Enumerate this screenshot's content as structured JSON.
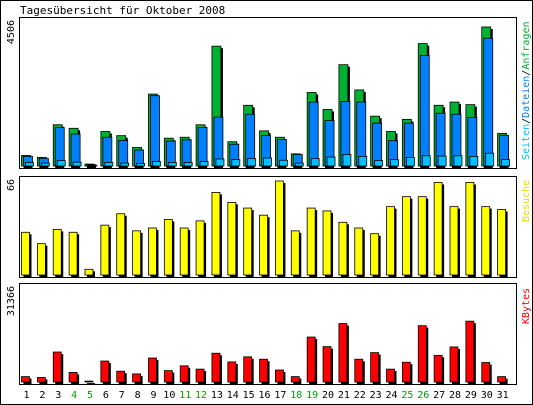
{
  "colors": {
    "background": "#ffffff",
    "frame": "#000000",
    "hits": "#00b030",
    "files": "#0080ff",
    "pages": "#00c0ff",
    "visits": "#ffff00",
    "kbytes": "#ff0000",
    "weekend_label": "#00a000"
  },
  "chart_data": {
    "type": "bar",
    "title": "Tagesübersicht für Oktober 2008",
    "categories": [
      "1",
      "2",
      "3",
      "4",
      "5",
      "6",
      "7",
      "8",
      "9",
      "10",
      "11",
      "12",
      "13",
      "14",
      "15",
      "16",
      "17",
      "18",
      "19",
      "20",
      "21",
      "22",
      "23",
      "24",
      "25",
      "26",
      "27",
      "28",
      "29",
      "30",
      "31"
    ],
    "weekend_days": [
      "4",
      "5",
      "11",
      "12",
      "18",
      "19",
      "25",
      "26"
    ],
    "panels": [
      {
        "id": "requests",
        "axis_max_label": "4506",
        "ylim": [
          0,
          4506
        ],
        "legend_parts": [
          {
            "text": "Seiten",
            "color": "#00c0ff"
          },
          {
            "text": "/",
            "color": "#000000"
          },
          {
            "text": "Dateien",
            "color": "#0080ff"
          },
          {
            "text": "/",
            "color": "#000000"
          },
          {
            "text": "Anfragen",
            "color": "#00b030"
          }
        ],
        "series": [
          {
            "name": "Anfragen",
            "values": [
              330,
              270,
              1290,
              1180,
              60,
              1080,
              950,
              580,
              2250,
              870,
              900,
              1290,
              3750,
              760,
              1900,
              1100,
              900,
              380,
              2300,
              1770,
              3170,
              2380,
              1560,
              1080,
              1460,
              3830,
              1900,
              2000,
              1920,
              4350,
              1020
            ]
          },
          {
            "name": "Dateien",
            "values": [
              300,
              240,
              1200,
              1000,
              40,
              900,
              800,
              500,
              2200,
              780,
              820,
              1200,
              1530,
              680,
              1620,
              950,
              830,
              360,
              2000,
              1420,
              2020,
              2000,
              1340,
              790,
              1340,
              3460,
              1650,
              1620,
              1520,
              4000,
              960
            ]
          },
          {
            "name": "Seiten",
            "values": [
              110,
              90,
              170,
              120,
              20,
              110,
              90,
              80,
              140,
              110,
              110,
              140,
              220,
              200,
              230,
              250,
              180,
              90,
              230,
              280,
              360,
              300,
              170,
              200,
              270,
              320,
              310,
              320,
              300,
              400,
              200
            ]
          }
        ]
      },
      {
        "id": "visits",
        "axis_max_label": "66",
        "ylim": [
          0,
          66
        ],
        "legend_parts": [
          {
            "text": "Besuche",
            "color": "#e0e000"
          }
        ],
        "series": [
          {
            "name": "Besuche",
            "values": [
              30,
              22,
              32,
              30,
              4,
              35,
              43,
              31,
              33,
              39,
              33,
              38,
              58,
              51,
              47,
              42,
              66,
              31,
              47,
              45,
              37,
              33,
              29,
              48,
              55,
              55,
              65,
              48,
              65,
              48,
              46
            ]
          }
        ]
      },
      {
        "id": "kbytes",
        "axis_max_label": "31366",
        "ylim": [
          0,
          31366
        ],
        "legend_parts": [
          {
            "text": "KBytes",
            "color": "#ff0000"
          }
        ],
        "series": [
          {
            "name": "KBytes",
            "values": [
              1800,
              1500,
              10000,
              3200,
              300,
              7000,
              3600,
              2700,
              8000,
              3800,
              5400,
              4300,
              9600,
              6700,
              8400,
              7600,
              4000,
              1800,
              15000,
              11800,
              19500,
              7600,
              9800,
              4300,
              6600,
              18800,
              8900,
              11700,
              20300,
              6500,
              1800
            ]
          }
        ]
      }
    ]
  }
}
